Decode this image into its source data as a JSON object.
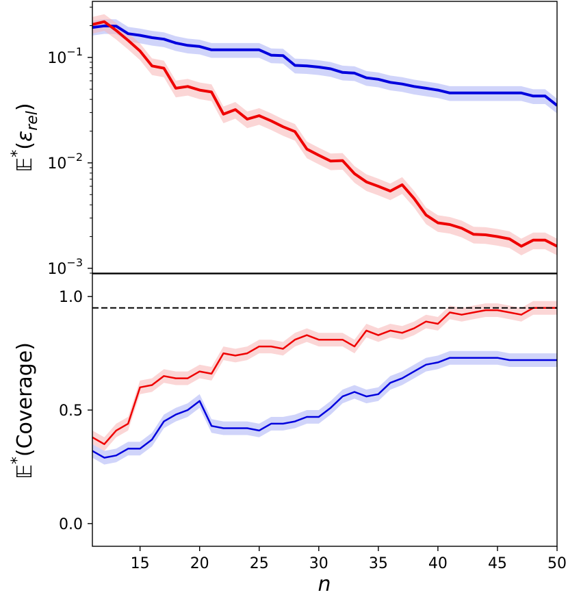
{
  "chart_data": [
    {
      "type": "line",
      "ylabel_prefix": "𝔼",
      "ylabel_sup": "*",
      "ylabel_open": "(",
      "ylabel_symbol": "ε",
      "ylabel_sub": "rel",
      "ylabel_close": ")",
      "yscale": "log",
      "xlim": [
        11,
        50
      ],
      "ylim": [
        0.0009,
        0.34
      ],
      "yticks": [
        {
          "value": 0.1,
          "base": "10",
          "exp": "−1"
        },
        {
          "value": 0.01,
          "base": "10",
          "exp": "−2"
        },
        {
          "value": 0.001,
          "base": "10",
          "exp": "−3"
        }
      ],
      "x": [
        11,
        12,
        13,
        14,
        15,
        16,
        17,
        18,
        19,
        20,
        21,
        22,
        23,
        24,
        25,
        26,
        27,
        28,
        29,
        30,
        31,
        32,
        33,
        34,
        35,
        36,
        37,
        38,
        39,
        40,
        41,
        42,
        43,
        44,
        45,
        46,
        47,
        48,
        49,
        50
      ],
      "series": [
        {
          "color": "#0000dd",
          "band_color": "#aab0f5",
          "band_width": 0.16,
          "values": [
            0.192,
            0.199,
            0.198,
            0.168,
            0.162,
            0.154,
            0.149,
            0.137,
            0.13,
            0.127,
            0.118,
            0.118,
            0.118,
            0.118,
            0.118,
            0.105,
            0.104,
            0.084,
            0.083,
            0.081,
            0.078,
            0.072,
            0.071,
            0.064,
            0.062,
            0.058,
            0.056,
            0.053,
            0.051,
            0.049,
            0.046,
            0.046,
            0.046,
            0.046,
            0.046,
            0.046,
            0.046,
            0.043,
            0.043,
            0.035
          ]
        },
        {
          "color": "#ee0000",
          "band_color": "#f7b5b5",
          "band_width": 0.18,
          "values": [
            0.205,
            0.218,
            0.18,
            0.145,
            0.115,
            0.083,
            0.079,
            0.051,
            0.053,
            0.049,
            0.047,
            0.029,
            0.032,
            0.026,
            0.028,
            0.025,
            0.022,
            0.0198,
            0.0135,
            0.0118,
            0.0104,
            0.0105,
            0.0079,
            0.0066,
            0.006,
            0.0054,
            0.0062,
            0.0046,
            0.0032,
            0.0027,
            0.0026,
            0.0024,
            0.0021,
            0.00208,
            0.002,
            0.0019,
            0.00162,
            0.00185,
            0.00185,
            0.00162
          ]
        }
      ]
    },
    {
      "type": "line",
      "ylabel_prefix": "𝔼",
      "ylabel_sup": "*",
      "ylabel_text": "(Coverage)",
      "xlabel": "n",
      "xlim": [
        11,
        50
      ],
      "ylim": [
        -0.1,
        1.1
      ],
      "yticks": [
        0.0,
        0.5,
        1.0
      ],
      "ytick_labels": [
        "0.0",
        "0.5",
        "1.0"
      ],
      "xticks": [
        15,
        20,
        25,
        30,
        35,
        40,
        45,
        50
      ],
      "xtick_labels": [
        "15",
        "20",
        "25",
        "30",
        "35",
        "40",
        "45",
        "50"
      ],
      "reference_line": {
        "value": 0.95,
        "style": "dashed",
        "color": "#000000"
      },
      "x": [
        11,
        12,
        13,
        14,
        15,
        16,
        17,
        18,
        19,
        20,
        21,
        22,
        23,
        24,
        25,
        26,
        27,
        28,
        29,
        30,
        31,
        32,
        33,
        34,
        35,
        36,
        37,
        38,
        39,
        40,
        41,
        42,
        43,
        44,
        45,
        46,
        47,
        48,
        49,
        50
      ],
      "series": [
        {
          "color": "#ee0000",
          "band_color": "#f7b5b5",
          "band_halfwidth": 0.03,
          "values": [
            0.38,
            0.35,
            0.41,
            0.44,
            0.6,
            0.61,
            0.65,
            0.64,
            0.64,
            0.67,
            0.66,
            0.75,
            0.74,
            0.75,
            0.78,
            0.78,
            0.77,
            0.81,
            0.83,
            0.81,
            0.81,
            0.81,
            0.78,
            0.85,
            0.83,
            0.85,
            0.84,
            0.86,
            0.89,
            0.88,
            0.93,
            0.92,
            0.93,
            0.94,
            0.94,
            0.93,
            0.92,
            0.95,
            0.95,
            0.95
          ]
        },
        {
          "color": "#0000dd",
          "band_color": "#aab0f5",
          "band_halfwidth": 0.03,
          "values": [
            0.32,
            0.29,
            0.3,
            0.33,
            0.33,
            0.37,
            0.45,
            0.48,
            0.5,
            0.54,
            0.43,
            0.42,
            0.42,
            0.42,
            0.41,
            0.44,
            0.44,
            0.45,
            0.47,
            0.47,
            0.51,
            0.56,
            0.58,
            0.56,
            0.57,
            0.62,
            0.64,
            0.67,
            0.7,
            0.71,
            0.73,
            0.73,
            0.73,
            0.73,
            0.73,
            0.72,
            0.72,
            0.72,
            0.72,
            0.72
          ]
        }
      ]
    }
  ]
}
